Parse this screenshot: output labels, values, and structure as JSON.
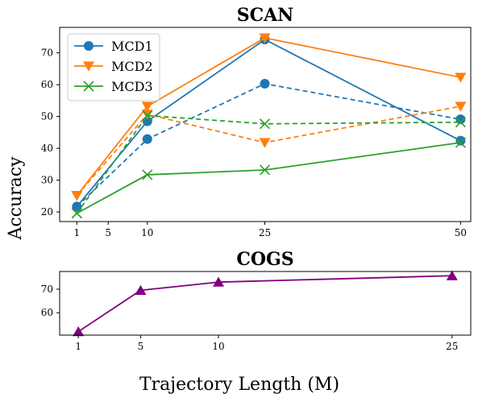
{
  "ylabel": "Accuracy",
  "xlabel": "Trajectory Length (M)",
  "chart_data": [
    {
      "type": "line",
      "title": "SCAN",
      "xticks": [
        1,
        5,
        10,
        25,
        50
      ],
      "yticks": [
        20,
        30,
        40,
        50,
        60,
        70
      ],
      "xlim": [
        -1.2,
        51.3
      ],
      "ylim": [
        17,
        78
      ],
      "legend": "top-left",
      "grid": false,
      "series": [
        {
          "name": "MCD1",
          "color": "#1f77b4",
          "marker": "circle",
          "style": "solid",
          "x": [
            1,
            10,
            25,
            50
          ],
          "y": [
            21.7,
            48.5,
            74.2,
            42.4
          ]
        },
        {
          "name": "MCD2",
          "color": "#ff7f0e",
          "marker": "triangle-down",
          "style": "solid",
          "x": [
            1,
            10,
            25,
            50
          ],
          "y": [
            25.2,
            53.2,
            74.7,
            62.3
          ]
        },
        {
          "name": "MCD3",
          "color": "#2ca02c",
          "marker": "x",
          "style": "solid",
          "x": [
            1,
            10,
            25,
            50
          ],
          "y": [
            19.6,
            31.7,
            33.2,
            41.8
          ]
        },
        {
          "name": "",
          "color": "#1f77b4",
          "marker": "circle",
          "style": "dashed",
          "x": [
            1,
            10,
            25,
            50
          ],
          "y": [
            21.7,
            42.9,
            60.3,
            49.1
          ]
        },
        {
          "name": "",
          "color": "#ff7f0e",
          "marker": "triangle-down",
          "style": "dashed",
          "x": [
            1,
            10,
            25,
            50
          ],
          "y": [
            25.2,
            50.7,
            41.8,
            53.2
          ]
        },
        {
          "name": "",
          "color": "#2ca02c",
          "marker": "x",
          "style": "dashed",
          "x": [
            1,
            10,
            25,
            50
          ],
          "y": [
            19.6,
            50.3,
            47.7,
            48.2
          ]
        }
      ]
    },
    {
      "type": "line",
      "title": "COGS",
      "xticks": [
        1,
        5,
        10,
        25
      ],
      "yticks": [
        60,
        70
      ],
      "xlim": [
        -0.2,
        26.2
      ],
      "ylim": [
        50.5,
        77.5
      ],
      "grid": false,
      "series": [
        {
          "name": "",
          "color": "#800080",
          "marker": "triangle-up",
          "style": "solid",
          "x": [
            1,
            5,
            10,
            25
          ],
          "y": [
            52.0,
            69.5,
            73.0,
            75.7
          ]
        }
      ]
    }
  ]
}
